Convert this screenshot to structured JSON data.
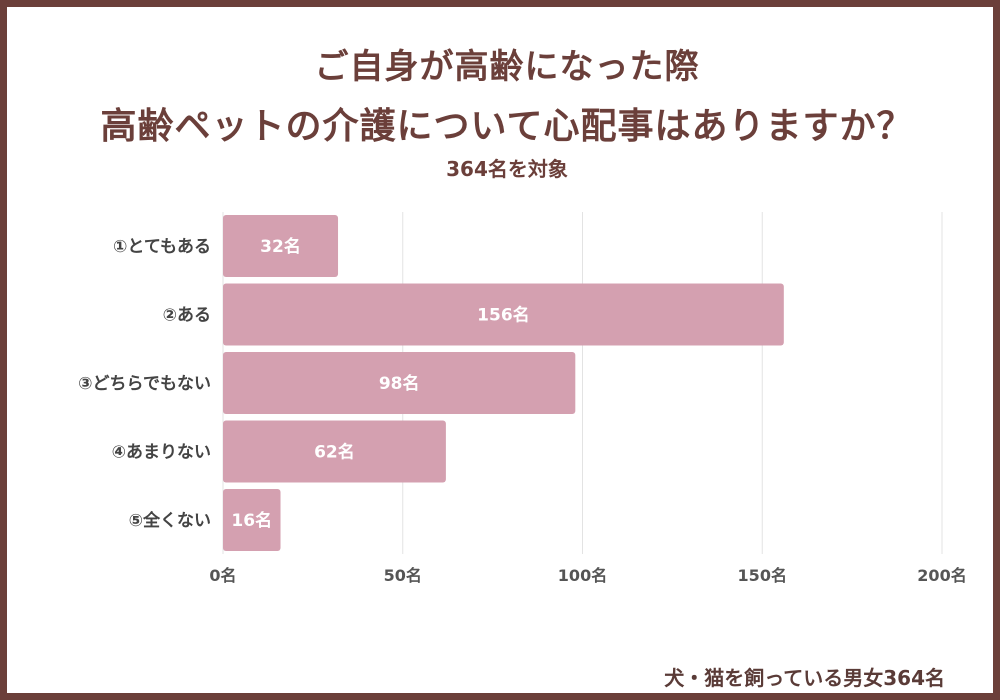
{
  "title_line1": "ご自身が高齢になった際",
  "title_line2": "高齢ペットの介護について心配事はありますか？",
  "subtitle": "364名を対象",
  "footer": "犬・猫を飼っている男女364名",
  "colors": {
    "bar": "#d4a0b0",
    "frame": "#6b3f3a",
    "grid": "#e3e3e3"
  },
  "chart_data": {
    "type": "bar",
    "orientation": "horizontal",
    "categories": [
      "①とてもある",
      "②ある",
      "③どちらでもない",
      "④あまりない",
      "⑤全くない"
    ],
    "values": [
      32,
      156,
      98,
      62,
      16
    ],
    "value_labels": [
      "32名",
      "156名",
      "98名",
      "62名",
      "16名"
    ],
    "xlim": [
      0,
      200
    ],
    "ticks": [
      0,
      50,
      100,
      150,
      200
    ],
    "tick_labels": [
      "0名",
      "50名",
      "100名",
      "150名",
      "200名"
    ],
    "grid": true,
    "legend": "none"
  }
}
